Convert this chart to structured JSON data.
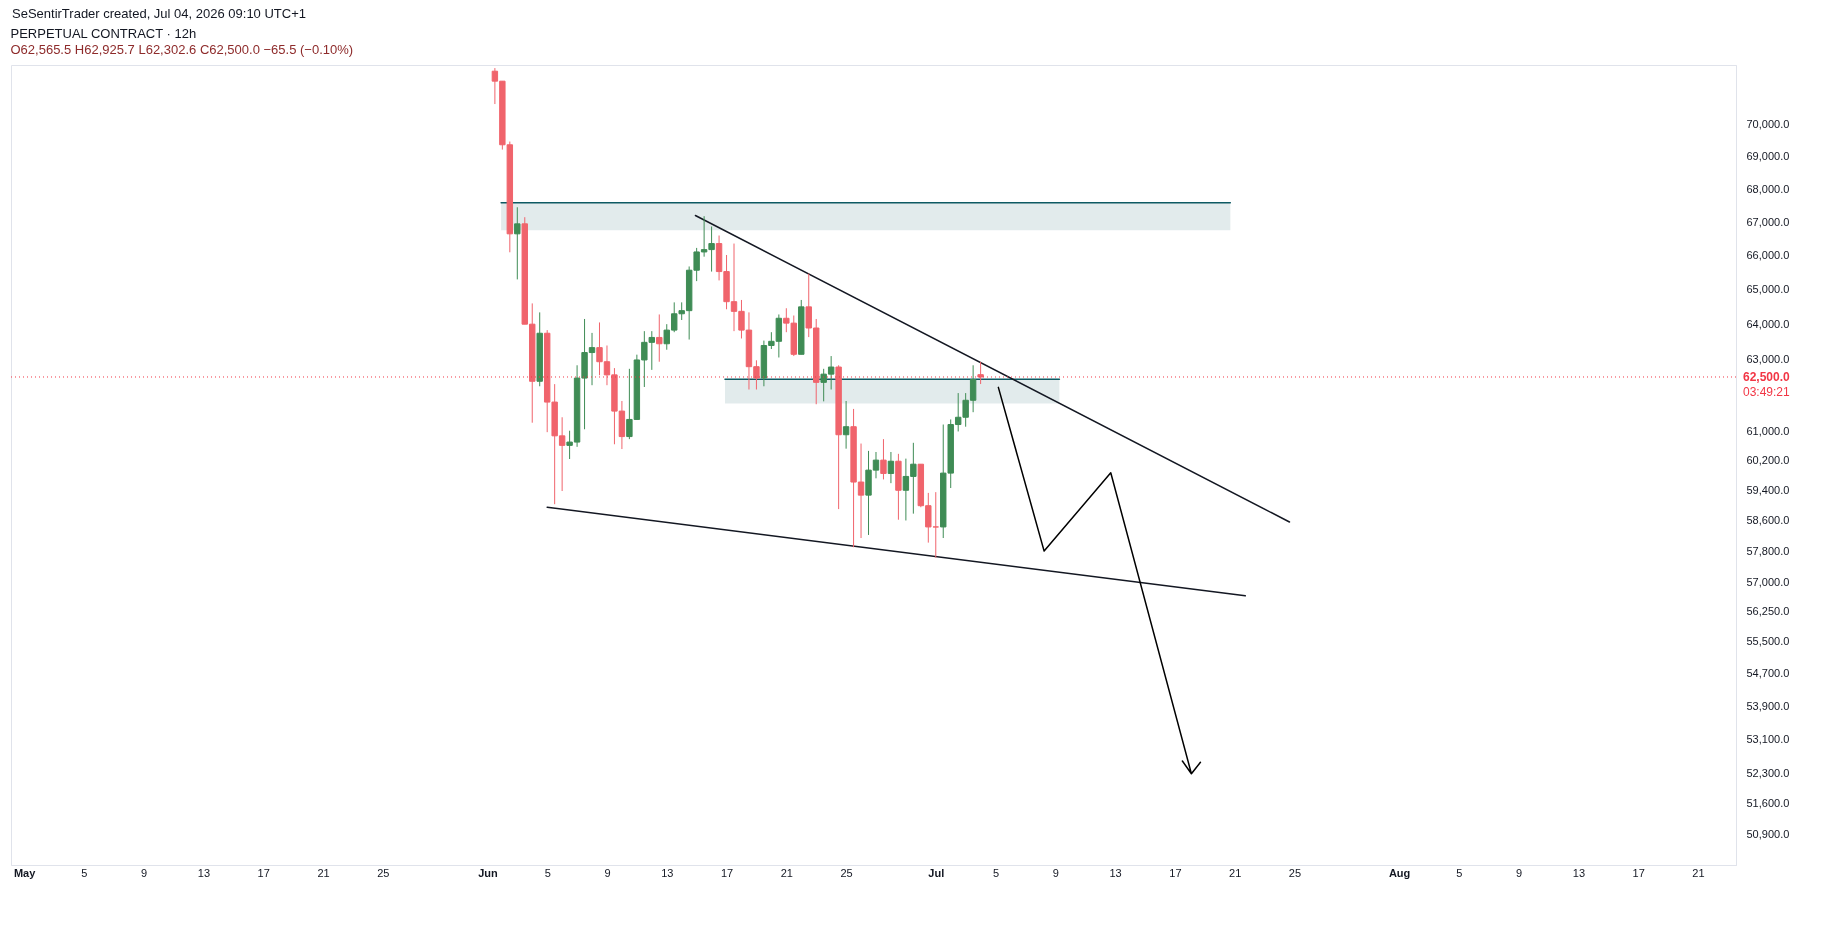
{
  "chart_data": {
    "type": "candlestick",
    "title": "PERPETUAL CONTRACT · 12h",
    "subtitle": "O62,565.5 H62,925.7 L62,302.6 C62,500.0 −65.5 (−0.10%)",
    "annotations": [
      "SeSentirTrader created, Jul 04, 2026 09:10 UTC+1",
      "03:49:21"
    ],
    "log": true,
    "x": [
      "2026-06-01T12:00",
      "2026-06-02T00:00",
      "2026-06-02T12:00",
      "2026-06-03T00:00",
      "2026-06-03T12:00",
      "2026-06-04T00:00",
      "2026-06-04T12:00",
      "2026-06-05T00:00",
      "2026-06-05T12:00",
      "2026-06-06T00:00",
      "2026-06-06T12:00",
      "2026-06-07T00:00",
      "2026-06-07T12:00",
      "2026-06-08T00:00",
      "2026-06-08T12:00",
      "2026-06-09T00:00",
      "2026-06-09T12:00",
      "2026-06-10T00:00",
      "2026-06-10T12:00",
      "2026-06-11T00:00",
      "2026-06-11T12:00",
      "2026-06-12T00:00",
      "2026-06-12T12:00",
      "2026-06-13T00:00",
      "2026-06-13T12:00",
      "2026-06-14T00:00",
      "2026-06-14T12:00",
      "2026-06-15T00:00",
      "2026-06-15T12:00",
      "2026-06-16T00:00",
      "2026-06-16T12:00",
      "2026-06-17T00:00",
      "2026-06-17T12:00",
      "2026-06-18T00:00",
      "2026-06-18T12:00",
      "2026-06-19T00:00",
      "2026-06-19T12:00",
      "2026-06-20T00:00",
      "2026-06-20T12:00",
      "2026-06-21T00:00",
      "2026-06-21T12:00",
      "2026-06-22T00:00",
      "2026-06-22T12:00",
      "2026-06-23T00:00",
      "2026-06-23T12:00",
      "2026-06-24T00:00",
      "2026-06-24T12:00",
      "2026-06-25T00:00",
      "2026-06-25T12:00",
      "2026-06-26T00:00",
      "2026-06-26T12:00",
      "2026-06-27T00:00",
      "2026-06-27T12:00",
      "2026-06-28T00:00",
      "2026-06-28T12:00",
      "2026-06-29T00:00",
      "2026-06-29T12:00",
      "2026-06-30T00:00",
      "2026-06-30T12:00",
      "2026-07-01T00:00",
      "2026-07-01T12:00",
      "2026-07-02T00:00",
      "2026-07-02T12:00",
      "2026-07-03T00:00",
      "2026-07-03T12:00",
      "2026-07-04T00:00"
    ],
    "ohlc": [
      [
        71700,
        71800,
        70650,
        71380
      ],
      [
        71380,
        71380,
        69220,
        69370
      ],
      [
        69370,
        69470,
        66100,
        66650
      ],
      [
        66650,
        67450,
        65300,
        66950
      ],
      [
        66950,
        67150,
        64000,
        64000
      ],
      [
        64000,
        64600,
        61230,
        62380
      ],
      [
        62380,
        64340,
        62240,
        63740
      ],
      [
        63740,
        63830,
        60970,
        61800
      ],
      [
        61800,
        62300,
        59030,
        60870
      ],
      [
        60870,
        61380,
        59380,
        60610
      ],
      [
        60610,
        61010,
        60240,
        60700
      ],
      [
        60700,
        62830,
        60570,
        62470
      ],
      [
        62470,
        64150,
        61050,
        63190
      ],
      [
        63190,
        63750,
        62270,
        63330
      ],
      [
        63330,
        64050,
        62550,
        62930
      ],
      [
        62930,
        63390,
        62270,
        62560
      ],
      [
        62560,
        62750,
        60640,
        61550
      ],
      [
        61550,
        61830,
        60510,
        60850
      ],
      [
        60850,
        62730,
        60780,
        61320
      ],
      [
        61320,
        63130,
        61320,
        62980
      ],
      [
        62980,
        63800,
        62220,
        63480
      ],
      [
        63480,
        63800,
        62700,
        63620
      ],
      [
        63620,
        64280,
        62930,
        63440
      ],
      [
        63440,
        64000,
        63270,
        63830
      ],
      [
        63830,
        64630,
        63770,
        64300
      ],
      [
        64300,
        64630,
        64120,
        64390
      ],
      [
        64390,
        65680,
        63560,
        65570
      ],
      [
        65570,
        66230,
        65250,
        66110
      ],
      [
        66110,
        67180,
        65970,
        66180
      ],
      [
        66180,
        66870,
        65530,
        66360
      ],
      [
        66360,
        66600,
        65270,
        65530
      ],
      [
        65530,
        66020,
        64430,
        64650
      ],
      [
        64650,
        66360,
        63800,
        64370
      ],
      [
        64370,
        64700,
        63590,
        63830
      ],
      [
        63830,
        64340,
        62150,
        62790
      ],
      [
        62790,
        62970,
        62150,
        62470
      ],
      [
        62470,
        63530,
        62240,
        63390
      ],
      [
        63390,
        63770,
        63290,
        63510
      ],
      [
        63510,
        64280,
        63050,
        64170
      ],
      [
        64170,
        64460,
        63770,
        64030
      ],
      [
        64030,
        64250,
        63090,
        63140
      ],
      [
        63140,
        64700,
        63140,
        64500
      ],
      [
        64500,
        65470,
        63630,
        63890
      ],
      [
        63890,
        64150,
        61740,
        62350
      ],
      [
        62350,
        62730,
        61820,
        62580
      ],
      [
        62580,
        63090,
        62150,
        62780
      ],
      [
        62780,
        62830,
        58900,
        60900
      ],
      [
        60900,
        61830,
        60520,
        61120
      ],
      [
        61120,
        61610,
        57900,
        59620
      ],
      [
        59620,
        60660,
        58140,
        59270
      ],
      [
        59270,
        60460,
        58220,
        59940
      ],
      [
        59940,
        60430,
        59720,
        60210
      ],
      [
        60210,
        60780,
        59690,
        59850
      ],
      [
        59850,
        60430,
        59590,
        60180
      ],
      [
        60180,
        60380,
        58620,
        59400
      ],
      [
        59400,
        60250,
        58600,
        59770
      ],
      [
        59770,
        60680,
        58780,
        60100
      ],
      [
        60100,
        60100,
        58950,
        58990
      ],
      [
        58990,
        59330,
        58020,
        58430
      ],
      [
        58430,
        59350,
        57630,
        58430
      ],
      [
        58430,
        61180,
        58140,
        59860
      ],
      [
        59860,
        61320,
        59460,
        61180
      ],
      [
        61180,
        62050,
        60990,
        61380
      ],
      [
        61380,
        62050,
        61120,
        61850
      ],
      [
        61850,
        62830,
        61520,
        62430
      ],
      [
        62565.5,
        62925.7,
        62302.6,
        62500.0
      ]
    ],
    "colors": [
      "#f0646c",
      "#f0646c",
      "#f0646c",
      "#3f8c55",
      "#f0646c",
      "#f0646c",
      "#3f8c55",
      "#f0646c",
      "#f0646c",
      "#f0646c",
      "#3f8c55",
      "#3f8c55",
      "#3f8c55",
      "#3f8c55",
      "#f0646c",
      "#f0646c",
      "#f0646c",
      "#f0646c",
      "#3f8c55",
      "#3f8c55",
      "#3f8c55",
      "#3f8c55",
      "#f0646c",
      "#3f8c55",
      "#3f8c55",
      "#3f8c55",
      "#3f8c55",
      "#3f8c55",
      "#3f8c55",
      "#3f8c55",
      "#f0646c",
      "#f0646c",
      "#f0646c",
      "#f0646c",
      "#f0646c",
      "#f0646c",
      "#3f8c55",
      "#3f8c55",
      "#3f8c55",
      "#f0646c",
      "#f0646c",
      "#3f8c55",
      "#f0646c",
      "#f0646c",
      "#3f8c55",
      "#3f8c55",
      "#f0646c",
      "#3f8c55",
      "#f0646c",
      "#f0646c",
      "#3f8c55",
      "#3f8c55",
      "#f0646c",
      "#3f8c55",
      "#f0646c",
      "#3f8c55",
      "#3f8c55",
      "#f0646c",
      "#f0646c",
      "#f0646c",
      "#3f8c55",
      "#3f8c55",
      "#3f8c55",
      "#3f8c55",
      "#3f8c55",
      "#f0646c"
    ],
    "series": [
      {
        "type": "line",
        "color": "#0e5a63",
        "x": [
          "2026-06-01T22:00",
          "2026-07-20T17:00"
        ],
        "values": [
          67590,
          67590
        ],
        "upper": [
          67590,
          67590
        ],
        "lower": [
          66760,
          66760
        ]
      },
      {
        "type": "line",
        "color": "#0e5a63",
        "x": [
          "2026-06-16T21:30",
          "2026-07-09T06:30"
        ],
        "values": [
          62440,
          62440
        ],
        "upper": [
          62440,
          62440
        ],
        "lower": [
          61760,
          61760
        ]
      },
      {
        "type": "line",
        "color": "#131722",
        "x": [
          "2026-06-14T22:00",
          "2026-07-24T16:00"
        ],
        "values": [
          67200,
          58560
        ]
      },
      {
        "type": "line",
        "color": "#131722",
        "x": [
          "2026-06-05T00:00",
          "2026-07-21T17:00"
        ],
        "values": [
          58950,
          56650
        ]
      },
      {
        "type": "line",
        "color": "#000000",
        "x": [
          "2026-07-05T04:30",
          "2026-07-08T06:00",
          "2026-07-12T17:00",
          "2026-07-18T02:30",
          "2026-07-17T12:00",
          "2026-07-18T02:30",
          "2026-07-18T17:00"
        ],
        "values": [
          62210,
          57800,
          59870,
          52300,
          52600,
          52300,
          52570
        ]
      }
    ],
    "ref_lines": [
      {
        "axis": "y",
        "value": 62500,
        "label": "62,500.0",
        "color": "#f23645",
        "line_style": "dotted"
      }
    ],
    "xlim": [
      "2026-04-30T11:00",
      "2026-08-23T05:00"
    ],
    "xticks": [
      {
        "value": "2026-05-01",
        "label": "May"
      },
      {
        "value": "2026-05-05",
        "label": "5"
      },
      {
        "value": "2026-05-09",
        "label": "9"
      },
      {
        "value": "2026-05-13",
        "label": "13"
      },
      {
        "value": "2026-05-17",
        "label": "17"
      },
      {
        "value": "2026-05-21",
        "label": "21"
      },
      {
        "value": "2026-05-25",
        "label": "25"
      },
      {
        "value": "2026-06-01",
        "label": "Jun"
      },
      {
        "value": "2026-06-05",
        "label": "5"
      },
      {
        "value": "2026-06-09",
        "label": "9"
      },
      {
        "value": "2026-06-13",
        "label": "13"
      },
      {
        "value": "2026-06-17",
        "label": "17"
      },
      {
        "value": "2026-06-21",
        "label": "21"
      },
      {
        "value": "2026-06-25",
        "label": "25"
      },
      {
        "value": "2026-07-01",
        "label": "Jul"
      },
      {
        "value": "2026-07-05",
        "label": "5"
      },
      {
        "value": "2026-07-09",
        "label": "9"
      },
      {
        "value": "2026-07-13",
        "label": "13"
      },
      {
        "value": "2026-07-17",
        "label": "17"
      },
      {
        "value": "2026-07-21",
        "label": "21"
      },
      {
        "value": "2026-07-25",
        "label": "25"
      },
      {
        "value": "2026-08-01",
        "label": "Aug"
      },
      {
        "value": "2026-08-05",
        "label": "5"
      },
      {
        "value": "2026-08-09",
        "label": "9"
      },
      {
        "value": "2026-08-13",
        "label": "13"
      },
      {
        "value": "2026-08-17",
        "label": "17"
      },
      {
        "value": "2026-08-21",
        "label": "21"
      }
    ],
    "ylim": [
      50200,
      71900
    ],
    "yticks": [
      {
        "value": 70000,
        "label": "70,000.0"
      },
      {
        "value": 69000,
        "label": "69,000.0"
      },
      {
        "value": 68000,
        "label": "68,000.0"
      },
      {
        "value": 67000,
        "label": "67,000.0"
      },
      {
        "value": 66000,
        "label": "66,000.0"
      },
      {
        "value": 65000,
        "label": "65,000.0"
      },
      {
        "value": 64000,
        "label": "64,000.0"
      },
      {
        "value": 63000,
        "label": "63,000.0"
      },
      {
        "value": 61000,
        "label": "61,000.0"
      },
      {
        "value": 60200,
        "label": "60,200.0"
      },
      {
        "value": 59400,
        "label": "59,400.0"
      },
      {
        "value": 58600,
        "label": "58,600.0"
      },
      {
        "value": 57800,
        "label": "57,800.0"
      },
      {
        "value": 57000,
        "label": "57,000.0"
      },
      {
        "value": 56250,
        "label": "56,250.0"
      },
      {
        "value": 55500,
        "label": "55,500.0"
      },
      {
        "value": 54700,
        "label": "54,700.0"
      },
      {
        "value": 53900,
        "label": "53,900.0"
      },
      {
        "value": 53100,
        "label": "53,100.0"
      },
      {
        "value": 52300,
        "label": "52,300.0"
      },
      {
        "value": 51600,
        "label": "51,600.0"
      },
      {
        "value": 50900,
        "label": "50,900.0"
      }
    ],
    "grid": false
  }
}
